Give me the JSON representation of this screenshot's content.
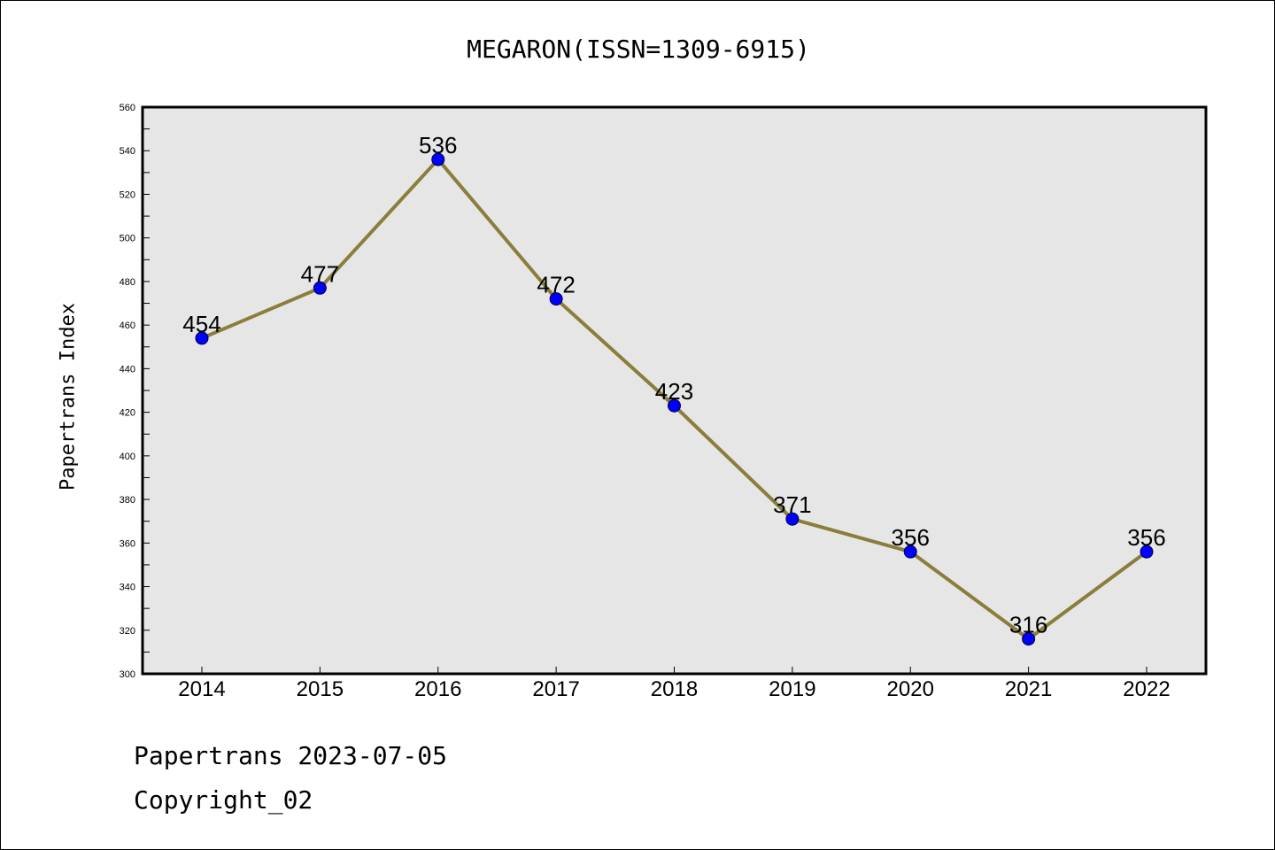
{
  "chart_data": {
    "type": "line",
    "title": "MEGARON(ISSN=1309-6915)",
    "xlabel": "",
    "ylabel": "Papertrans Index",
    "categories": [
      "2014",
      "2015",
      "2016",
      "2017",
      "2018",
      "2019",
      "2020",
      "2021",
      "2022"
    ],
    "values": [
      454,
      477,
      536,
      472,
      423,
      371,
      356,
      316,
      356
    ],
    "ylim": [
      300,
      560
    ],
    "yticks": [
      300,
      320,
      340,
      360,
      380,
      400,
      420,
      440,
      460,
      480,
      500,
      520,
      540,
      560
    ],
    "grid": false,
    "line_color": "#8b7d3a",
    "marker_color": "#0000ff",
    "plot_background": "#e6e6e6"
  },
  "footer": {
    "date_line": "Papertrans 2023-07-05",
    "copyright": "Copyright_02"
  }
}
